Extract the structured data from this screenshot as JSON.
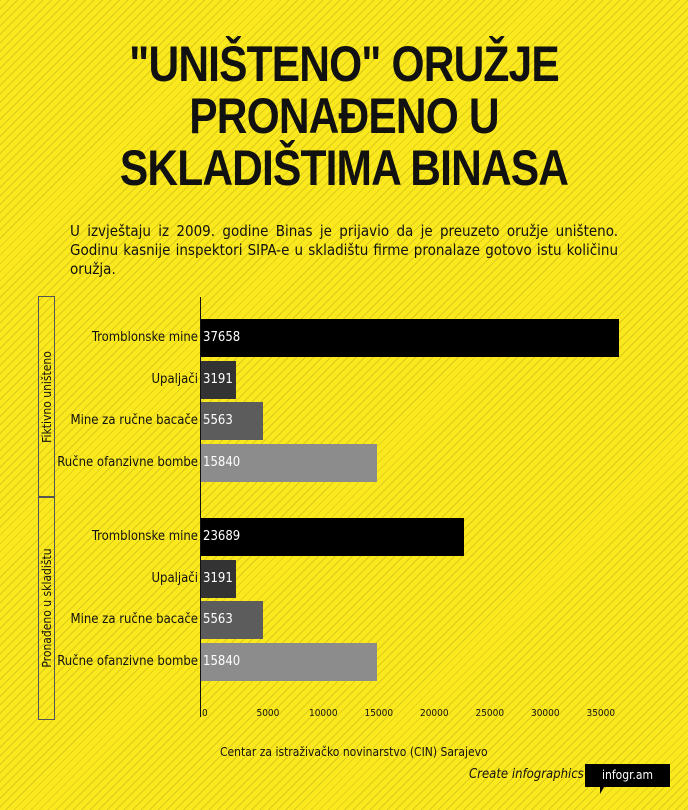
{
  "title_lines": [
    "\"UNIŠTENO\" ORUŽJE",
    "PRONAĐENO U",
    "SKLADIŠTIMA BINASA"
  ],
  "subtitle": "U izvještaju iz 2009. godine Binas je prijavio da je preuzeto oružje uništeno. Godinu kasnije inspektori SIPA-e u skladištu firme pronalaze gotovo istu količinu oružja.",
  "chart_data": {
    "type": "bar",
    "orientation": "horizontal",
    "categories": [
      "Tromblonske mine",
      "Upaljači",
      "Mine za ručne bacače",
      "Ručne ofanzivne bombe"
    ],
    "series": [
      {
        "name": "Fiktivno uništeno",
        "values": [
          37658,
          3191,
          5563,
          15840
        ]
      },
      {
        "name": "Pronađeno u skladištu",
        "values": [
          23689,
          3191,
          5563,
          15840
        ]
      }
    ],
    "colors": [
      "#000000",
      "#333333",
      "#5c5c5c",
      "#8c8c8c"
    ],
    "xlim": [
      0,
      37658
    ],
    "xticks": [
      "0",
      "5000",
      "10000",
      "15000",
      "20000",
      "25000",
      "30000",
      "35000"
    ],
    "source": "Centar za istraživačko novinarstvo (CIN) Sarajevo"
  },
  "footer": {
    "create": "Create infographics",
    "logo": "infogr.am"
  }
}
